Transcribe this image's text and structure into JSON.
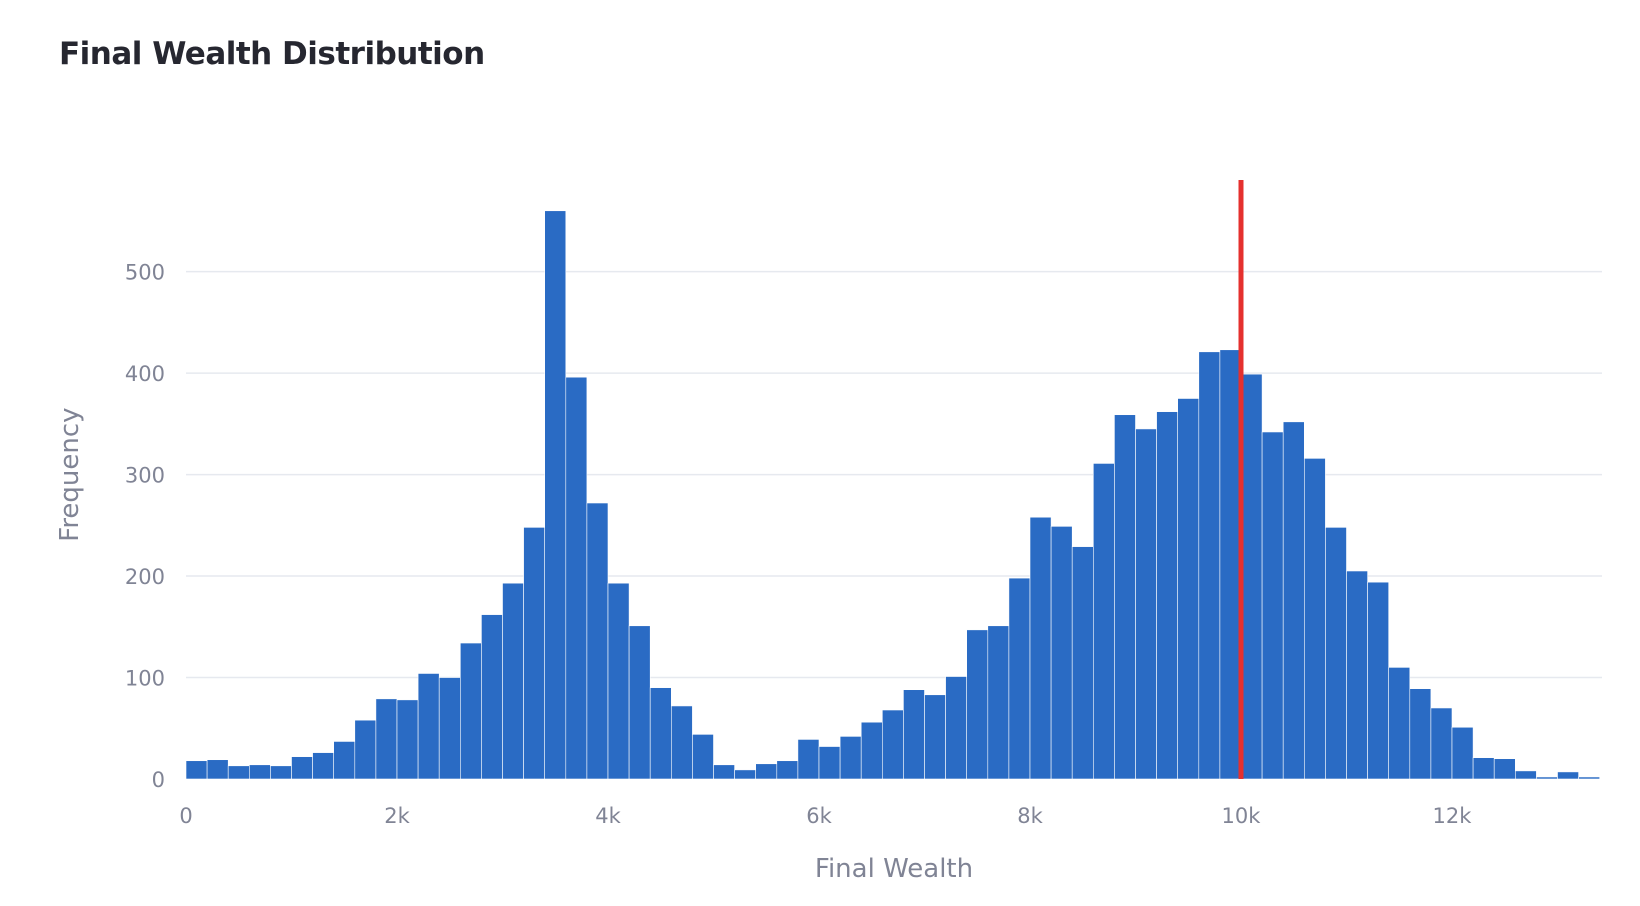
{
  "chart_data": {
    "type": "histogram",
    "title": "Final Wealth Distribution",
    "xlabel": "Final Wealth",
    "ylabel": "Frequency",
    "xlim": [
      0,
      13400
    ],
    "ylim": [
      0,
      600
    ],
    "x_ticks": [
      {
        "value": 0,
        "label": "0"
      },
      {
        "value": 2000,
        "label": "2k"
      },
      {
        "value": 4000,
        "label": "4k"
      },
      {
        "value": 6000,
        "label": "6k"
      },
      {
        "value": 8000,
        "label": "8k"
      },
      {
        "value": 10000,
        "label": "10k"
      },
      {
        "value": 12000,
        "label": "12k"
      }
    ],
    "y_ticks": [
      {
        "value": 0,
        "label": "0"
      },
      {
        "value": 100,
        "label": "100"
      },
      {
        "value": 200,
        "label": "200"
      },
      {
        "value": 300,
        "label": "300"
      },
      {
        "value": 400,
        "label": "400"
      },
      {
        "value": 500,
        "label": "500"
      }
    ],
    "grid": true,
    "bin_start": 0,
    "bin_width": 200,
    "counts": [
      18,
      19,
      13,
      14,
      13,
      22,
      26,
      37,
      58,
      79,
      78,
      104,
      100,
      134,
      162,
      193,
      248,
      560,
      396,
      272,
      193,
      151,
      90,
      72,
      44,
      14,
      9,
      15,
      18,
      39,
      32,
      42,
      56,
      68,
      88,
      83,
      101,
      147,
      151,
      198,
      258,
      249,
      229,
      311,
      359,
      345,
      362,
      375,
      421,
      423,
      399,
      342,
      352,
      316,
      248,
      205,
      194,
      110,
      89,
      70,
      51,
      21,
      20,
      8,
      2,
      7,
      2
    ],
    "reference_line": {
      "x": 10000,
      "color": "#e5302e"
    },
    "bar_color": "#2a6bc4"
  }
}
